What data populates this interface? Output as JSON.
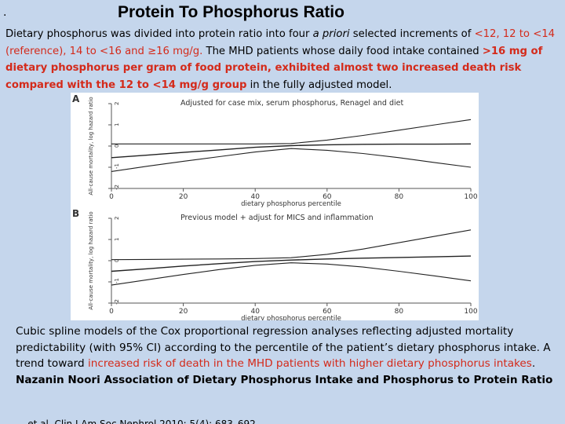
{
  "slide": {
    "bullet": "·",
    "title": "Protein To Phosphorus Ratio",
    "intro": {
      "part1": "Dietary phosphorus was divided into protein ratio into four ",
      "part1_italic": "a priori",
      "part2": " selected increments of ",
      "increments": "<12, 12 to <14 (reference), 14 to <16 and ≥16 mg/g.",
      "part3": " The MHD patients whose daily food intake contained ",
      "finding": ">16 mg of dietary phosphorus per gram of food protein, exhibited almost two increased death risk compared with the 12 to <14 mg/g group",
      "part4": " in the fully adjusted model."
    },
    "caption": {
      "part1": "Cubic spline models of the Cox proportional regression analyses reflecting adjusted mortality predictability (with 95% CI) according to the percentile of the patient’s dietary phosphorus intake. A trend toward ",
      "highlight": "increased risk of death in the MHD patients with higher dietary phosphorus intakes",
      "part2": ".",
      "citation": "Nazanin Noori  Association of Dietary Phosphorus Intake and Phosphorus to Protein Ratio"
    },
    "footer_partial": "... et al. Clin J Am Soc Nephrol 2010; 5(4): 683–692"
  },
  "chart_data": [
    {
      "type": "line",
      "panel": "A",
      "title": "Adjusted for case mix, serum phosphorus, Renagel and diet",
      "xlabel": "",
      "ylabel": "All-cause mortality, log hazard ratio",
      "xticks": [
        "0",
        "20",
        "40",
        "60",
        "80",
        "100"
      ],
      "yticks": [
        "2",
        "1",
        "0",
        "-1",
        "-2"
      ],
      "xlim": [
        0,
        100
      ],
      "ylim": [
        -2,
        2
      ],
      "x": [
        0,
        10,
        20,
        30,
        40,
        50,
        60,
        70,
        80,
        90,
        100
      ],
      "series": [
        {
          "role": "estimate",
          "values": [
            -0.55,
            -0.43,
            -0.3,
            -0.18,
            -0.06,
            0.02,
            0.06,
            0.08,
            0.09,
            0.09,
            0.1
          ]
        },
        {
          "role": "upper",
          "values": [
            0.1,
            0.1,
            0.1,
            0.1,
            0.1,
            0.12,
            0.28,
            0.5,
            0.75,
            1.0,
            1.25
          ]
        },
        {
          "role": "lower",
          "values": [
            -1.2,
            -0.95,
            -0.72,
            -0.5,
            -0.28,
            -0.12,
            -0.2,
            -0.35,
            -0.55,
            -0.78,
            -1.0
          ]
        }
      ]
    },
    {
      "type": "line",
      "panel": "B",
      "title": "Previous model + adjust for MICS and inflammation",
      "xlabel": "dietary phosphorus percentile",
      "ylabel": "All-cause mortality, log hazard ratio",
      "xticks": [
        "0",
        "20",
        "40",
        "60",
        "80",
        "100"
      ],
      "yticks": [
        "2",
        "1",
        "0",
        "-1",
        "-2"
      ],
      "xlim": [
        0,
        100
      ],
      "ylim": [
        -2,
        2
      ],
      "x": [
        0,
        10,
        20,
        30,
        40,
        50,
        60,
        70,
        80,
        90,
        100
      ],
      "series": [
        {
          "role": "estimate",
          "values": [
            -0.5,
            -0.38,
            -0.25,
            -0.14,
            -0.04,
            0.03,
            0.08,
            0.12,
            0.15,
            0.18,
            0.22
          ]
        },
        {
          "role": "upper",
          "values": [
            0.05,
            0.06,
            0.07,
            0.08,
            0.1,
            0.14,
            0.3,
            0.55,
            0.85,
            1.15,
            1.45
          ]
        },
        {
          "role": "lower",
          "values": [
            -1.15,
            -0.9,
            -0.65,
            -0.42,
            -0.22,
            -0.1,
            -0.16,
            -0.3,
            -0.5,
            -0.72,
            -0.95
          ]
        }
      ]
    }
  ],
  "figure_text": {
    "panel_a_label": "A",
    "panel_b_label": "B",
    "panel_a_title": "Adjusted for case mix, serum phosphorus, Renagel and diet",
    "panel_b_title": "Previous model + adjust for MICS and inflammation",
    "xlabel_a": "dietary phosphorus percentile",
    "xlabel_b": "dietary phosphorus percentile",
    "ylabel": "All-cause mortality, log hazard ratio"
  },
  "colors": {
    "background": "#c5d6ec",
    "highlight_red": "#d42a1a",
    "line": "#222222"
  }
}
